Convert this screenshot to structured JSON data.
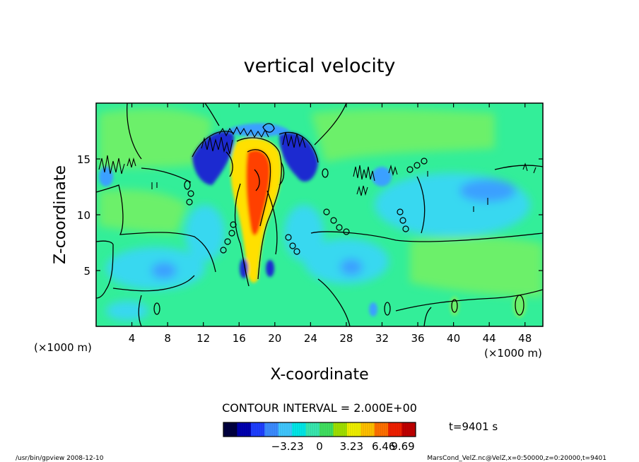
{
  "chart_data": {
    "type": "heatmap",
    "title": "vertical velocity",
    "xlabel": "X-coordinate",
    "ylabel": "Z-coordinate",
    "x_unit_left": "(×1000 m)",
    "x_unit_right": "(×1000 m)",
    "xlim": [
      0,
      50
    ],
    "ylim": [
      0,
      20
    ],
    "xticks": [
      4,
      8,
      12,
      16,
      20,
      24,
      28,
      32,
      36,
      40,
      44,
      48
    ],
    "yticks": [
      5,
      10,
      15
    ],
    "contour_interval": "CONTOUR INTERVAL = 2.000E+00",
    "time_label": "t=9401 s",
    "colorbar": {
      "min": -9.69,
      "max": 9.69,
      "ticks": [
        -3.23,
        0,
        3.23,
        6.46,
        9.69
      ],
      "tick_labels": [
        "−3.23",
        "0",
        "3.23",
        "6.46",
        "9.69"
      ],
      "colors": [
        "#000040",
        "#0000b0",
        "#1f3fff",
        "#3c8cff",
        "#40c8ff",
        "#00e8e8",
        "#38e8b0",
        "#40e060",
        "#a0e000",
        "#f0f000",
        "#ffc000",
        "#ff7000",
        "#f02000",
        "#c00000"
      ]
    },
    "field_colors": {
      "background": "#33ee99",
      "neutral_light": "#6cf06a",
      "weak_down": "#38d8f0",
      "down": "#3aa0ff",
      "strong_down": "#1a2ad0",
      "up": "#ffe000",
      "strong_up": "#ff4000"
    }
  },
  "footer": {
    "left": "/usr/bin/gpview   2008-12-10",
    "right": "MarsCond_VelZ.nc@VelZ,x=0:50000,z=0:20000,t=9401"
  }
}
